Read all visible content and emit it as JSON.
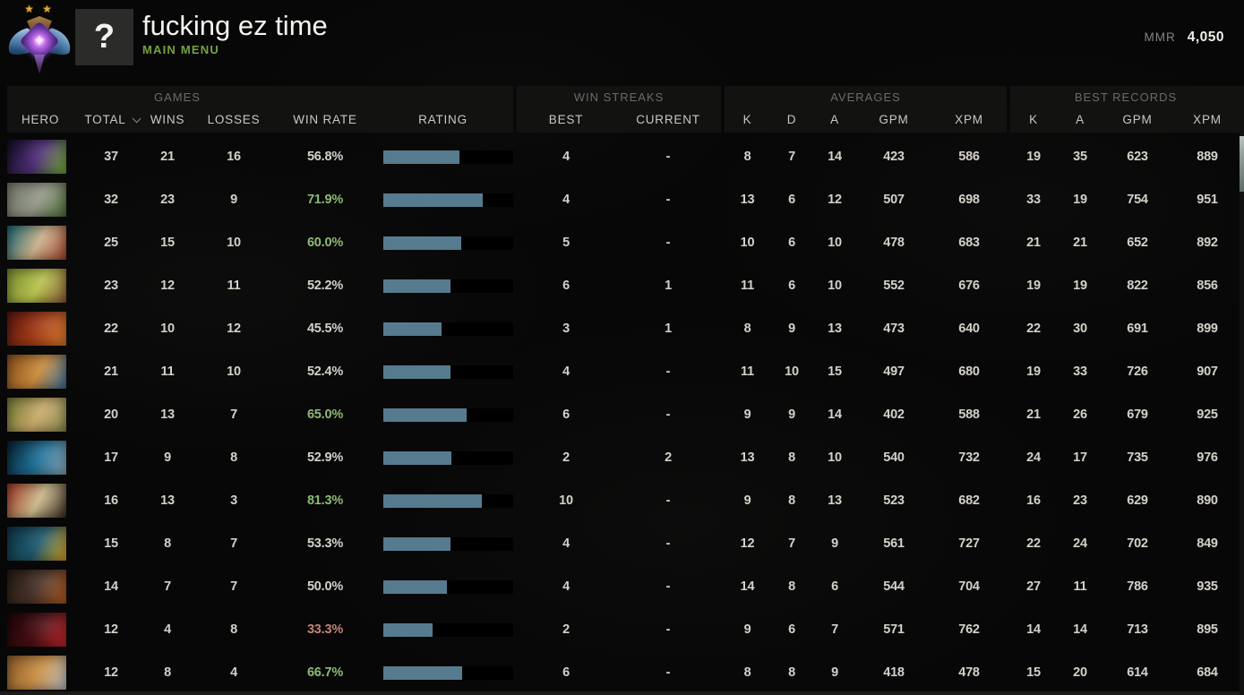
{
  "header": {
    "title": "fucking ez time",
    "subtitle": "MAIN MENU",
    "avatar_glyph": "?",
    "mmr_label": "MMR",
    "mmr_value": "4,050",
    "rank_medal": "ancient-two-stars"
  },
  "table": {
    "groups": {
      "games": "GAMES",
      "win_streaks": "WIN STREAKS",
      "averages": "AVERAGES",
      "best_records": "BEST RECORDS"
    },
    "columns": {
      "hero": "HERO",
      "total": "TOTAL",
      "wins": "WINS",
      "losses": "LOSSES",
      "win_rate": "WIN RATE",
      "rating": "RATING",
      "best": "BEST",
      "current": "CURRENT",
      "k": "K",
      "d": "D",
      "a": "A",
      "gpm": "GPM",
      "xpm": "XPM",
      "k2": "K",
      "a2": "A",
      "gpm2": "GPM",
      "xpm2": "XPM"
    },
    "rows": [
      {
        "total": "37",
        "wins": "21",
        "losses": "16",
        "win_rate": "56.8%",
        "rating_pct": 58.5,
        "best": "4",
        "current": "-",
        "k": "8",
        "d": "7",
        "a": "14",
        "gpm": "423",
        "xpm": "586",
        "bk": "19",
        "ba": "35",
        "bgpm": "623",
        "bxpm": "889",
        "portrait_colors": [
          "#120b20",
          "#50307a",
          "#6fae2e"
        ]
      },
      {
        "total": "32",
        "wins": "23",
        "losses": "9",
        "win_rate": "71.9%",
        "rating_pct": 76.8,
        "best": "4",
        "current": "-",
        "k": "13",
        "d": "6",
        "a": "12",
        "gpm": "507",
        "xpm": "698",
        "bk": "33",
        "ba": "19",
        "bgpm": "754",
        "bxpm": "951",
        "portrait_colors": [
          "#75796c",
          "#94998a",
          "#4f6f3a"
        ]
      },
      {
        "total": "25",
        "wins": "15",
        "losses": "10",
        "win_rate": "60.0%",
        "rating_pct": 60.0,
        "best": "5",
        "current": "-",
        "k": "10",
        "d": "6",
        "a": "10",
        "gpm": "478",
        "xpm": "683",
        "bk": "21",
        "ba": "21",
        "bgpm": "652",
        "bxpm": "892",
        "portrait_colors": [
          "#176673",
          "#c9b089",
          "#a3452e"
        ]
      },
      {
        "total": "23",
        "wins": "12",
        "losses": "11",
        "win_rate": "52.2%",
        "rating_pct": 51.4,
        "best": "6",
        "current": "1",
        "k": "11",
        "d": "6",
        "a": "10",
        "gpm": "552",
        "xpm": "676",
        "bk": "19",
        "ba": "19",
        "bgpm": "822",
        "bxpm": "856",
        "portrait_colors": [
          "#7a8a30",
          "#b7c24d",
          "#8a5f38"
        ]
      },
      {
        "total": "22",
        "wins": "10",
        "losses": "12",
        "win_rate": "45.5%",
        "rating_pct": 44.6,
        "best": "3",
        "current": "1",
        "k": "8",
        "d": "9",
        "a": "13",
        "gpm": "473",
        "xpm": "640",
        "bk": "22",
        "ba": "30",
        "bgpm": "691",
        "bxpm": "899",
        "portrait_colors": [
          "#5a1510",
          "#a33c17",
          "#d97a2a"
        ]
      },
      {
        "total": "21",
        "wins": "11",
        "losses": "10",
        "win_rate": "52.4%",
        "rating_pct": 51.4,
        "best": "4",
        "current": "-",
        "k": "11",
        "d": "10",
        "a": "15",
        "gpm": "497",
        "xpm": "680",
        "bk": "19",
        "ba": "33",
        "bgpm": "726",
        "bxpm": "907",
        "portrait_colors": [
          "#8a4f1f",
          "#c98a3a",
          "#3a6f9a"
        ]
      },
      {
        "total": "20",
        "wins": "13",
        "losses": "7",
        "win_rate": "65.0%",
        "rating_pct": 64.2,
        "best": "6",
        "current": "-",
        "k": "9",
        "d": "9",
        "a": "14",
        "gpm": "402",
        "xpm": "588",
        "bk": "21",
        "ba": "26",
        "bgpm": "679",
        "bxpm": "925",
        "portrait_colors": [
          "#6f7a33",
          "#c9a96a",
          "#8a8a50"
        ]
      },
      {
        "total": "17",
        "wins": "9",
        "losses": "8",
        "win_rate": "52.9%",
        "rating_pct": 52.1,
        "best": "2",
        "current": "2",
        "k": "13",
        "d": "8",
        "a": "10",
        "gpm": "540",
        "xpm": "732",
        "bk": "24",
        "ba": "17",
        "bgpm": "735",
        "bxpm": "976",
        "portrait_colors": [
          "#06202e",
          "#1f6f96",
          "#8aa7b5"
        ]
      },
      {
        "total": "16",
        "wins": "13",
        "losses": "3",
        "win_rate": "81.3%",
        "rating_pct": 75.7,
        "best": "10",
        "current": "-",
        "k": "9",
        "d": "8",
        "a": "13",
        "gpm": "523",
        "xpm": "682",
        "bk": "16",
        "ba": "23",
        "bgpm": "629",
        "bxpm": "890",
        "portrait_colors": [
          "#a33424",
          "#c9b98a",
          "#3a2a20"
        ]
      },
      {
        "total": "15",
        "wins": "8",
        "losses": "7",
        "win_rate": "53.3%",
        "rating_pct": 51.8,
        "best": "4",
        "current": "-",
        "k": "12",
        "d": "7",
        "a": "9",
        "gpm": "561",
        "xpm": "727",
        "bk": "22",
        "ba": "24",
        "bgpm": "702",
        "bxpm": "849",
        "portrait_colors": [
          "#0d3442",
          "#1f5a6f",
          "#d9a520"
        ]
      },
      {
        "total": "14",
        "wins": "7",
        "losses": "7",
        "win_rate": "50.0%",
        "rating_pct": 49.3,
        "best": "4",
        "current": "-",
        "k": "14",
        "d": "8",
        "a": "6",
        "gpm": "544",
        "xpm": "704",
        "bk": "27",
        "ba": "11",
        "bgpm": "786",
        "bxpm": "935",
        "portrait_colors": [
          "#241a14",
          "#4a342a",
          "#b05a1f"
        ]
      },
      {
        "total": "12",
        "wins": "4",
        "losses": "8",
        "win_rate": "33.3%",
        "rating_pct": 37.8,
        "best": "2",
        "current": "-",
        "k": "9",
        "d": "6",
        "a": "7",
        "gpm": "571",
        "xpm": "762",
        "bk": "14",
        "ba": "14",
        "bgpm": "713",
        "bxpm": "895",
        "portrait_colors": [
          "#1a0508",
          "#4a0f14",
          "#c2252a"
        ]
      },
      {
        "total": "12",
        "wins": "8",
        "losses": "4",
        "win_rate": "66.7%",
        "rating_pct": 60.5,
        "best": "6",
        "current": "-",
        "k": "8",
        "d": "8",
        "a": "9",
        "gpm": "418",
        "xpm": "478",
        "bk": "15",
        "ba": "20",
        "bgpm": "614",
        "bxpm": "684",
        "portrait_colors": [
          "#8a5a2a",
          "#c98f45",
          "#b7bdc4"
        ]
      }
    ]
  },
  "colors": {
    "accent_green": "#75a340",
    "bar_fill": "#567b8e",
    "win_rate_good": "#8cba74",
    "win_rate_bad": "#c2837a",
    "number_text": "#d4d1c9"
  }
}
